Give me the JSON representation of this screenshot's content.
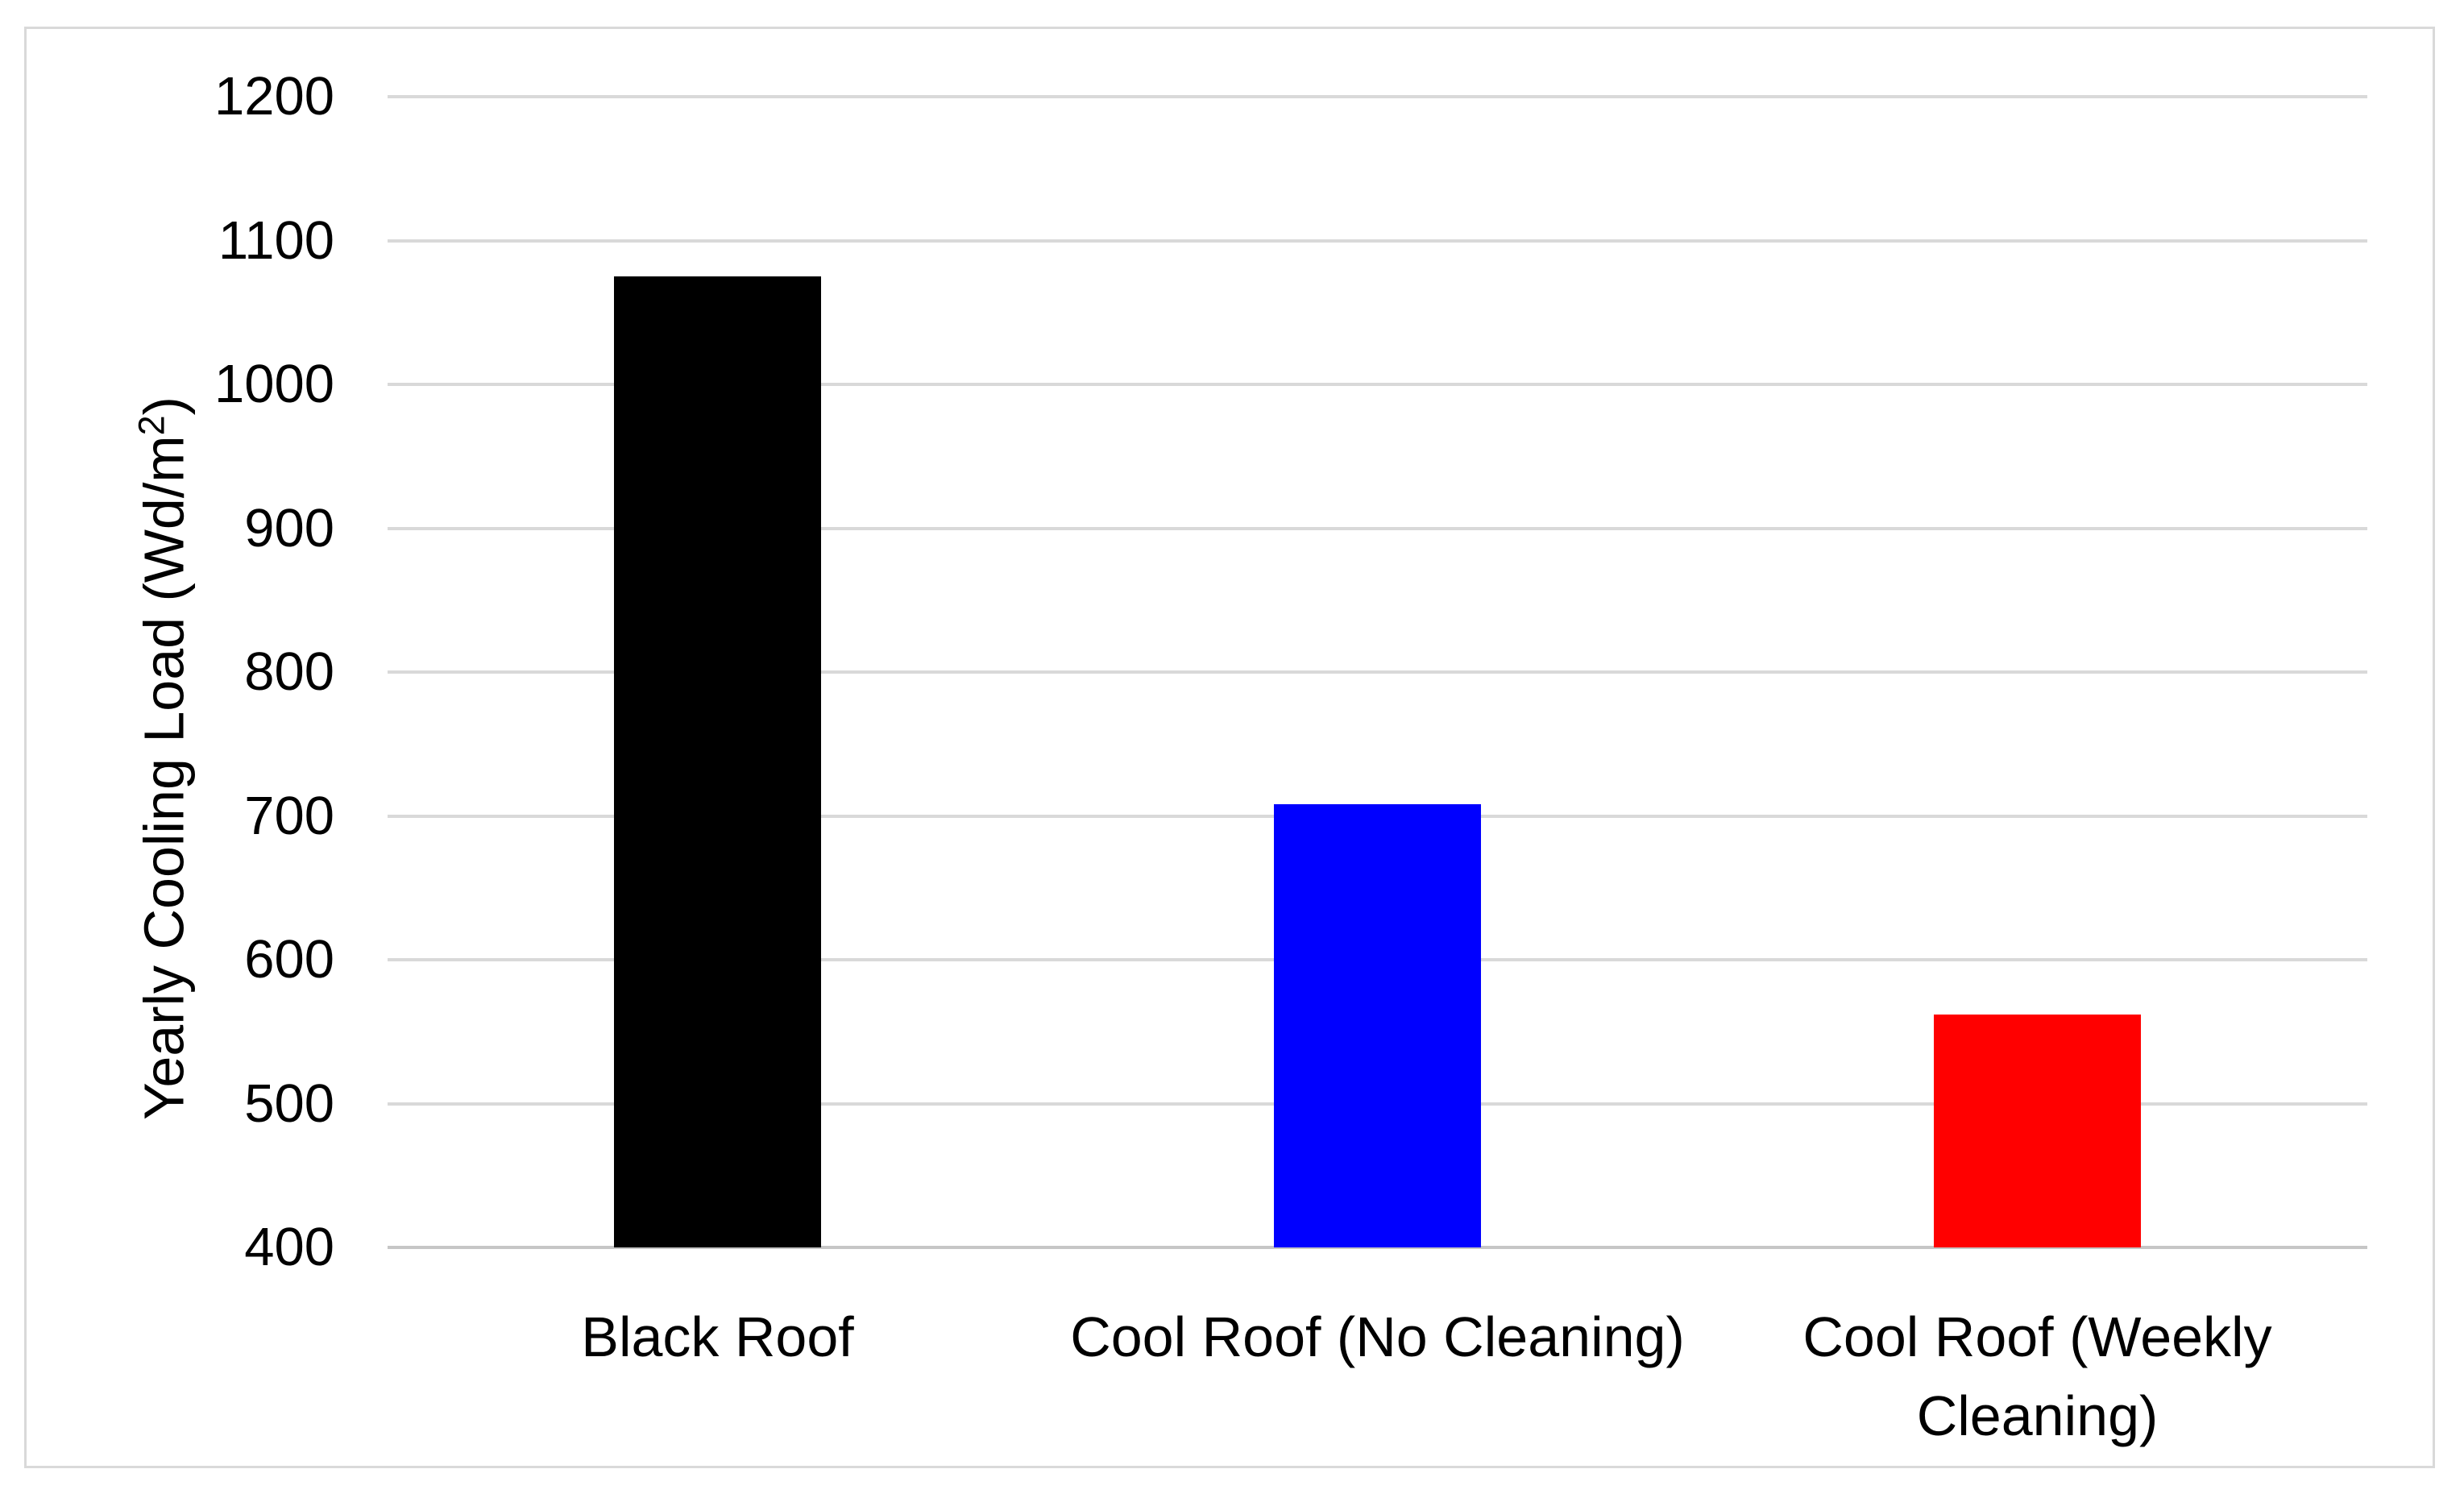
{
  "chart_data": {
    "type": "bar",
    "title": "",
    "categories": [
      "Black Roof",
      "Cool Roof (No Cleaning)",
      "Cool Roof (Weekly Cleaning)"
    ],
    "values": [
      1075,
      708,
      562
    ],
    "series": [
      {
        "name": "Yearly Cooling Load",
        "values": [
          1075,
          708,
          562
        ]
      }
    ],
    "bar_colors": [
      "#000000",
      "#0000FF",
      "#FF0000"
    ],
    "xlabel": "",
    "ylabel": "Yearly Cooling Load (Wd/m²)",
    "ylim": [
      400,
      1200
    ],
    "ytick_step": 100,
    "ytick_labels": [
      "400",
      "500",
      "600",
      "700",
      "800",
      "900",
      "1000",
      "1100",
      "1200"
    ],
    "grid": "horizontal-major",
    "legend": "none"
  },
  "styles": {
    "gridline_color": "#D9D9D9",
    "axis_line_color": "#C6C6C6",
    "frame_border_color": "#D9D9D9",
    "text_color": "#000000",
    "background_color": "#FFFFFF"
  }
}
